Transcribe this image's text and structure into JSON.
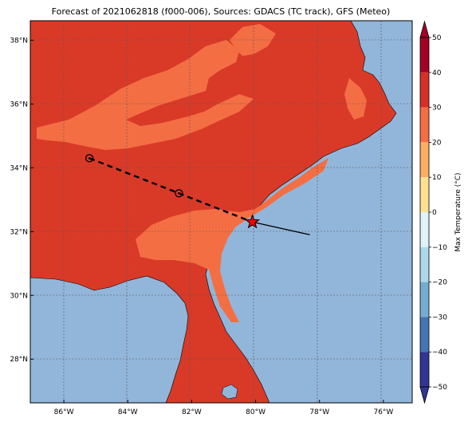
{
  "title": "Forecast of 2021062818 (f000-006), Sources: GDACS (TC track), GFS (Meteo)",
  "map": {
    "lat_ticks": [
      "38°N",
      "36°N",
      "34°N",
      "32°N",
      "30°N",
      "28°N"
    ],
    "lon_ticks": [
      "86°W",
      "84°W",
      "82°W",
      "80°W",
      "78°W",
      "76°W"
    ],
    "colors": {
      "ocean": "#92b6da",
      "temp_30_40": "#d93a28",
      "temp_20_30": "#f46e44",
      "coastline": "#000000",
      "gridline": "#555555"
    },
    "track": {
      "forecast_points": [
        {
          "lon": -85.2,
          "lat": 34.3
        },
        {
          "lon": -82.4,
          "lat": 33.2
        },
        {
          "lon": -80.1,
          "lat": 32.3
        }
      ],
      "current_position": {
        "lon": -80.1,
        "lat": 32.3
      },
      "history_end": {
        "lon": -78.3,
        "lat": 31.9
      },
      "star_color": "#ff0000"
    }
  },
  "colorbar": {
    "label": "Max Temperature (°C)",
    "ticks": [
      "50",
      "40",
      "30",
      "20",
      "10",
      "0",
      "−10",
      "−20",
      "−30",
      "−40",
      "−50"
    ],
    "colors": [
      "#a50026",
      "#d73027",
      "#f46d43",
      "#fdae61",
      "#fee090",
      "#ffffbf",
      "#e0f3f8",
      "#abd9e9",
      "#74add1",
      "#4575b4",
      "#313695"
    ]
  }
}
